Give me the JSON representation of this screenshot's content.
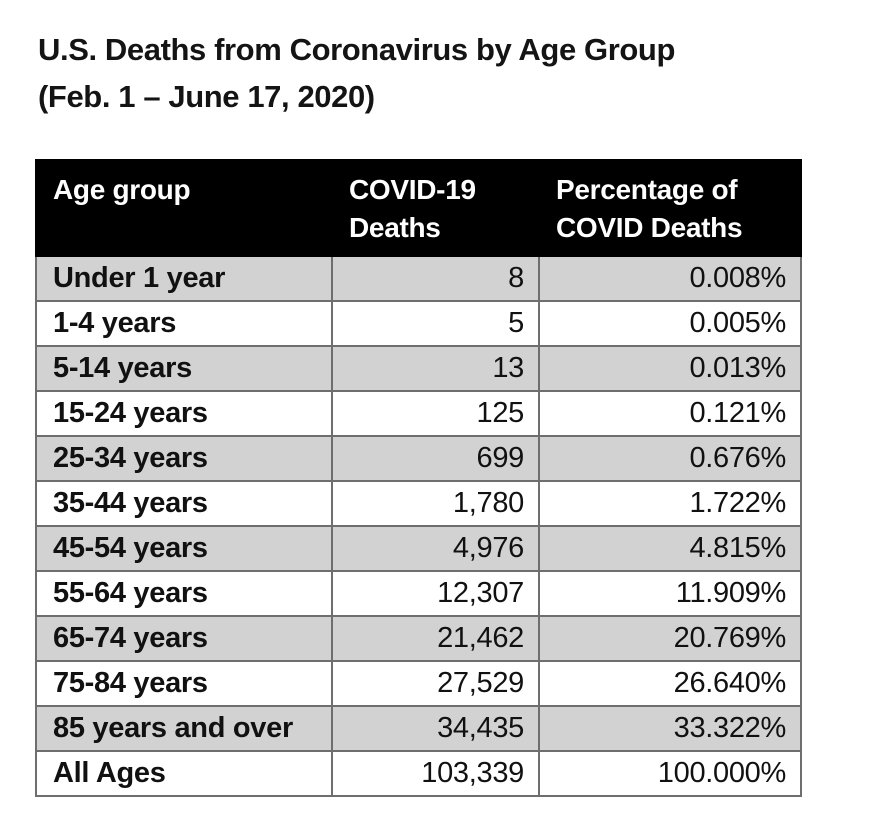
{
  "page": {
    "title_line1": "U.S. Deaths from Coronavirus by Age Group",
    "title_line2": "(Feb. 1 – June 17, 2020)"
  },
  "table": {
    "columns": [
      "Age group",
      "COVID-19 Deaths",
      "Percentage of COVID Deaths"
    ],
    "rows": [
      {
        "age": "Under 1 year",
        "deaths": "8",
        "pct": "0.008%"
      },
      {
        "age": "1-4 years",
        "deaths": "5",
        "pct": "0.005%"
      },
      {
        "age": "5-14 years",
        "deaths": "13",
        "pct": "0.013%"
      },
      {
        "age": "15-24 years",
        "deaths": "125",
        "pct": "0.121%"
      },
      {
        "age": "25-34 years",
        "deaths": "699",
        "pct": "0.676%"
      },
      {
        "age": "35-44 years",
        "deaths": "1,780",
        "pct": "1.722%"
      },
      {
        "age": "45-54 years",
        "deaths": "4,976",
        "pct": "4.815%"
      },
      {
        "age": "55-64 years",
        "deaths": "12,307",
        "pct": "11.909%"
      },
      {
        "age": "65-74 years",
        "deaths": "21,462",
        "pct": "20.769%"
      },
      {
        "age": "75-84 years",
        "deaths": "27,529",
        "pct": "26.640%"
      },
      {
        "age": "85 years and over",
        "deaths": "34,435",
        "pct": "33.322%"
      },
      {
        "age": "All Ages",
        "deaths": "103,339",
        "pct": "100.000%"
      }
    ]
  },
  "colors": {
    "header_bg": "#000000",
    "header_text": "#ffffff",
    "row_shaded_bg": "#d2d2d2",
    "row_plain_bg": "#ffffff",
    "grid_border": "#6e6e6e",
    "outer_border": "#2e2e2e"
  },
  "chart_data": {
    "type": "table",
    "title": "U.S. Deaths from Coronavirus by Age Group (Feb. 1 – June 17, 2020)",
    "columns": [
      "Age group",
      "COVID-19 Deaths",
      "Percentage of COVID Deaths"
    ],
    "categories": [
      "Under 1 year",
      "1-4 years",
      "5-14 years",
      "15-24 years",
      "25-34 years",
      "35-44 years",
      "45-54 years",
      "55-64 years",
      "65-74 years",
      "75-84 years",
      "85 years and over",
      "All Ages"
    ],
    "series": [
      {
        "name": "COVID-19 Deaths",
        "values": [
          8,
          5,
          13,
          125,
          699,
          1780,
          4976,
          12307,
          21462,
          27529,
          34435,
          103339
        ]
      },
      {
        "name": "Percentage of COVID Deaths",
        "values": [
          0.008,
          0.005,
          0.013,
          0.121,
          0.676,
          1.722,
          4.815,
          11.909,
          20.769,
          26.64,
          33.322,
          100.0
        ]
      }
    ]
  }
}
